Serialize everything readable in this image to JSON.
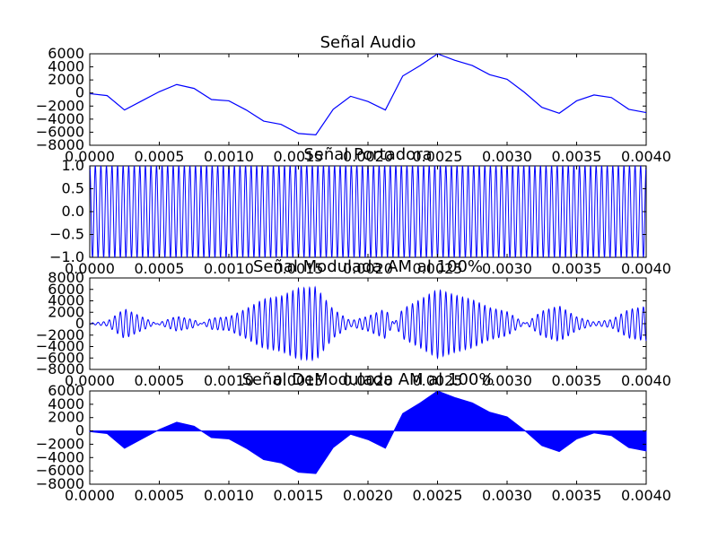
{
  "chart_data": [
    {
      "type": "line",
      "title": "Señal Audio",
      "xlim": [
        0,
        0.004
      ],
      "ylim": [
        -8000,
        6000
      ],
      "xticks": [
        0,
        0.0005,
        0.001,
        0.0015,
        0.002,
        0.0025,
        0.003,
        0.0035,
        0.004
      ],
      "xtick_labels": [
        "0.0000",
        "0.0005",
        "0.0010",
        "0.0015",
        "0.0020",
        "0.0025",
        "0.0030",
        "0.0035",
        "0.0040"
      ],
      "yticks": [
        6000,
        4000,
        2000,
        0,
        -2000,
        -4000,
        -6000,
        -8000
      ],
      "ytick_labels": [
        "6000",
        "4000",
        "2000",
        "0",
        "−2000",
        "−4000",
        "−6000",
        "−8000"
      ],
      "color": "#0000ff",
      "series": [
        {
          "x": [
            0,
            0.000125,
            0.00025,
            0.000375,
            0.0005,
            0.000625,
            0.00075,
            0.000875,
            0.001,
            0.001125,
            0.00125,
            0.001375,
            0.0015,
            0.001625,
            0.00175,
            0.001875,
            0.002,
            0.002125,
            0.00225,
            0.002375,
            0.0025,
            0.002625,
            0.00275,
            0.002875,
            0.003,
            0.003125,
            0.00325,
            0.003375,
            0.0035,
            0.003625,
            0.00375,
            0.003875,
            0.004
          ],
          "values": [
            -100,
            -400,
            -2600,
            -1200,
            200,
            1300,
            700,
            -1000,
            -1200,
            -2600,
            -4300,
            -4800,
            -6200,
            -6400,
            -2500,
            -500,
            -1300,
            -2600,
            2600,
            4200,
            6000,
            5000,
            4200,
            2800,
            2100,
            100,
            -2200,
            -3100,
            -1200,
            -300,
            -700,
            -2500,
            -3000
          ]
        }
      ]
    },
    {
      "type": "line",
      "title": "Señal Portadora",
      "xlim": [
        0,
        0.004
      ],
      "ylim": [
        -1.0,
        1.0
      ],
      "xticks": [
        0,
        0.0005,
        0.001,
        0.0015,
        0.002,
        0.0025,
        0.003,
        0.0035,
        0.004
      ],
      "xtick_labels": [
        "0.0000",
        "0.0005",
        "0.0010",
        "0.0015",
        "0.0020",
        "0.0025",
        "0.0030",
        "0.0035",
        "0.0040"
      ],
      "yticks": [
        1.0,
        0.5,
        0.0,
        -0.5,
        -1.0
      ],
      "ytick_labels": [
        "1.0",
        "0.5",
        "0.0",
        "−0.5",
        "−1.0"
      ],
      "color": "#0000ff",
      "series": [
        {
          "function": "cos",
          "amplitude": 1.0,
          "cycles": 100
        }
      ]
    },
    {
      "type": "line",
      "title": "Señal Modulada AM al 100%",
      "xlim": [
        0,
        0.004
      ],
      "ylim": [
        -8000,
        8000
      ],
      "xticks": [
        0,
        0.0005,
        0.001,
        0.0015,
        0.002,
        0.0025,
        0.003,
        0.0035,
        0.004
      ],
      "xtick_labels": [
        "0.0000",
        "0.0005",
        "0.0010",
        "0.0015",
        "0.0020",
        "0.0025",
        "0.0030",
        "0.0035",
        "0.0040"
      ],
      "yticks": [
        8000,
        6000,
        4000,
        2000,
        0,
        -2000,
        -4000,
        -6000,
        -8000
      ],
      "ytick_labels": [
        "8000",
        "6000",
        "4000",
        "2000",
        "0",
        "−2000",
        "−4000",
        "−6000",
        "−8000"
      ],
      "color": "#0000ff",
      "series": [
        {
          "envelope": "audio",
          "cycles": 100
        }
      ]
    },
    {
      "type": "area",
      "title": "Señal DeModulada AM al 100%",
      "xlim": [
        0,
        0.004
      ],
      "ylim": [
        -8000,
        6000
      ],
      "xticks": [
        0,
        0.0005,
        0.001,
        0.0015,
        0.002,
        0.0025,
        0.003,
        0.0035,
        0.004
      ],
      "xtick_labels": [
        "0.0000",
        "0.0005",
        "0.0010",
        "0.0015",
        "0.0020",
        "0.0025",
        "0.0030",
        "0.0035",
        "0.0040"
      ],
      "yticks": [
        6000,
        4000,
        2000,
        0,
        -2000,
        -4000,
        -6000,
        -8000
      ],
      "ytick_labels": [
        "6000",
        "4000",
        "2000",
        "0",
        "−2000",
        "−4000",
        "−6000",
        "−8000"
      ],
      "color": "#0000ff",
      "series": [
        {
          "envelope": "audio",
          "fill_to": 0
        }
      ]
    }
  ]
}
